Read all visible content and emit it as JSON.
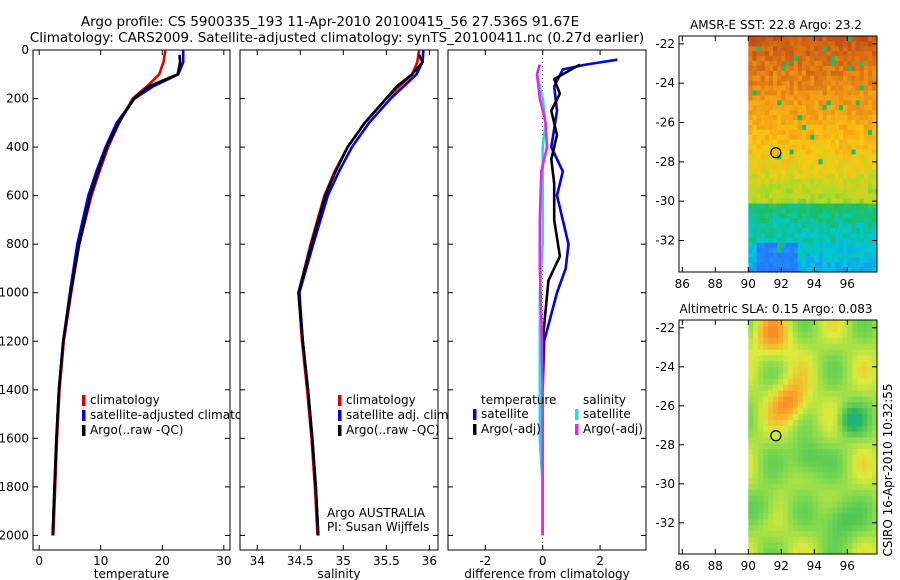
{
  "figure": {
    "title_line1": "Argo profile: CS 5900335_193 11-Apr-2010 20100415_56 27.536S 91.67E",
    "title_line2": "Climatology: CARS2009. Satellite-adjusted climatology: synTS_20100411.nc (0.27d earlier)",
    "side_label": "CSIRO 16-Apr-2010 10:32:55",
    "colors": {
      "red": "#e00000",
      "blue": "#0000ee",
      "black": "#000000",
      "cyan": "#22dddd",
      "magenta": "#ee22ee"
    }
  },
  "chart_data": [
    {
      "id": "temperature",
      "type": "line",
      "xlabel": "temperature",
      "xlim": [
        -1,
        31
      ],
      "ylim": [
        2060,
        0
      ],
      "xticks": [
        0,
        10,
        20,
        30
      ],
      "yticks": [
        0,
        200,
        400,
        600,
        800,
        1000,
        1200,
        1400,
        1600,
        1800,
        2000
      ],
      "legend": [
        "climatology",
        "satellite-adjusted climatology",
        "Argo(..raw -QC)"
      ],
      "legend_display": [
        "climatology",
        "satellite-adjusted climatolo",
        "Argo(..raw -QC)"
      ],
      "series": [
        {
          "name": "climatology",
          "color": "red",
          "x": [
            20.5,
            20.2,
            19.5,
            17.5,
            15.2,
            13.0,
            11.2,
            9.8,
            8.5,
            6.5,
            5.2,
            4.0,
            3.3,
            2.9,
            2.6,
            2.3
          ],
          "y": [
            0,
            50,
            100,
            150,
            200,
            300,
            400,
            500,
            600,
            800,
            1000,
            1200,
            1400,
            1600,
            1800,
            2000
          ]
        },
        {
          "name": "satellite-adjusted climatology",
          "color": "blue",
          "x": [
            23.4,
            23.4,
            22.6,
            18.5,
            15.5,
            12.6,
            10.8,
            9.3,
            8.0,
            6.2,
            5.0,
            3.9,
            3.2,
            2.8,
            2.5,
            2.2
          ],
          "y": [
            0,
            50,
            100,
            150,
            200,
            300,
            400,
            500,
            600,
            800,
            1000,
            1200,
            1400,
            1600,
            1800,
            2000
          ]
        },
        {
          "name": "Argo(..raw -QC)",
          "color": "black",
          "x": [
            22.8,
            22.9,
            22.5,
            17.8,
            15.4,
            12.9,
            11.0,
            9.6,
            8.3,
            6.5,
            5.1,
            3.9,
            3.2,
            2.8,
            2.5,
            2.2
          ],
          "y": [
            20,
            50,
            100,
            150,
            200,
            300,
            400,
            500,
            600,
            800,
            1000,
            1200,
            1400,
            1600,
            1800,
            2000
          ]
        }
      ]
    },
    {
      "id": "salinity",
      "type": "line",
      "xlabel": "salinity",
      "xlim": [
        33.8,
        36.1
      ],
      "ylim": [
        2060,
        0
      ],
      "xticks": [
        34,
        34.5,
        35,
        35.5,
        36
      ],
      "legend": [
        "climatology",
        "satellite adj. clim.",
        "Argo(..raw -QC)"
      ],
      "annotation_line1": "Argo AUSTRALIA",
      "annotation_line2": "PI: Susan Wijffels",
      "series": [
        {
          "name": "climatology",
          "color": "red",
          "x": [
            35.88,
            35.86,
            35.8,
            35.65,
            35.5,
            35.25,
            35.05,
            34.9,
            34.78,
            34.62,
            34.48,
            34.52,
            34.58,
            34.63,
            34.67,
            34.7
          ],
          "y": [
            0,
            50,
            100,
            150,
            200,
            300,
            400,
            500,
            600,
            800,
            1000,
            1200,
            1400,
            1600,
            1800,
            2000
          ]
        },
        {
          "name": "satellite adj. clim.",
          "color": "blue",
          "x": [
            35.93,
            35.92,
            35.85,
            35.7,
            35.55,
            35.3,
            35.1,
            34.95,
            34.82,
            34.65,
            34.49,
            34.53,
            34.59,
            34.64,
            34.68,
            34.71
          ],
          "y": [
            0,
            50,
            100,
            150,
            200,
            300,
            400,
            500,
            600,
            800,
            1000,
            1200,
            1400,
            1600,
            1800,
            2000
          ]
        },
        {
          "name": "Argo(..raw -QC)",
          "color": "black",
          "x": [
            35.88,
            35.92,
            35.8,
            35.62,
            35.5,
            35.25,
            35.05,
            34.91,
            34.79,
            34.63,
            34.48,
            34.53,
            34.59,
            34.64,
            34.68,
            34.71
          ],
          "y": [
            20,
            50,
            100,
            150,
            200,
            300,
            400,
            500,
            600,
            800,
            1000,
            1200,
            1400,
            1600,
            1800,
            2000
          ]
        }
      ]
    },
    {
      "id": "difference",
      "type": "line",
      "xlabel": "difference from climatology",
      "xlim": [
        -3.3,
        3.6
      ],
      "ylim": [
        2060,
        0
      ],
      "xticks": [
        -2,
        0,
        2
      ],
      "legend_group1_title": "temperature",
      "legend_group2_title": "salinity",
      "legend": [
        "satellite",
        "Argo(-adj)",
        "satellite",
        "Argo(-adj)"
      ],
      "series": [
        {
          "name": "temperature satellite",
          "color": "blue",
          "x": [
            2.6,
            1.5,
            0.7,
            0.4,
            0.5,
            0.3,
            0.7,
            0.5,
            0.9,
            0.8,
            0.5,
            0.05,
            0.0,
            0.0,
            0.0,
            0.0
          ],
          "y": [
            40,
            60,
            80,
            150,
            250,
            400,
            500,
            600,
            800,
            900,
            1000,
            1200,
            1400,
            1600,
            1800,
            2000
          ]
        },
        {
          "name": "temperature Argo(-adj)",
          "color": "black",
          "x": [
            1.3,
            1.0,
            0.4,
            0.6,
            0.3,
            0.5,
            0.3,
            0.4,
            0.4,
            0.6,
            0.2,
            0.0,
            0.0,
            0.0,
            0.0,
            0.0
          ],
          "y": [
            60,
            80,
            120,
            180,
            250,
            350,
            450,
            550,
            700,
            850,
            950,
            1200,
            1400,
            1600,
            1800,
            2000
          ]
        },
        {
          "name": "salinity satellite",
          "color": "cyan",
          "x": [
            -0.1,
            -0.2,
            0.0,
            0.1,
            0.0,
            0.0,
            0.0,
            -0.1,
            -0.1,
            -0.1,
            -0.1,
            0.0,
            0.0
          ],
          "y": [
            60,
            100,
            200,
            300,
            400,
            600,
            800,
            1000,
            1200,
            1400,
            1600,
            1800,
            2000
          ]
        },
        {
          "name": "salinity Argo(-adj)",
          "color": "magenta",
          "x": [
            -0.1,
            -0.2,
            -0.1,
            0.1,
            0.15,
            -0.05,
            -0.1,
            -0.1,
            -0.05,
            0.0,
            0.0,
            0.0
          ],
          "y": [
            60,
            100,
            200,
            300,
            400,
            500,
            700,
            900,
            1100,
            1400,
            1700,
            2000
          ]
        }
      ]
    },
    {
      "id": "sst_map",
      "type": "heatmap",
      "title": "AMSR-E SST: 22.8 Argo: 23.2",
      "xlim": [
        85.8,
        97.8
      ],
      "ylim": [
        -33.6,
        -21.6
      ],
      "xticks": [
        86,
        88,
        90,
        92,
        94,
        96
      ],
      "yticks": [
        -22,
        -24,
        -26,
        -28,
        -30,
        -32
      ],
      "data_lon_min": 90,
      "argo_marker": {
        "lon": 91.67,
        "lat": -27.536
      }
    },
    {
      "id": "sla_map",
      "type": "heatmap",
      "title": "Altimetric SLA: 0.15 Argo: 0.083",
      "xlim": [
        85.8,
        97.8
      ],
      "ylim": [
        -33.6,
        -21.6
      ],
      "xticks": [
        86,
        88,
        90,
        92,
        94,
        96
      ],
      "yticks": [
        -22,
        -24,
        -26,
        -28,
        -30,
        -32
      ],
      "data_lon_min": 90,
      "argo_marker": {
        "lon": 91.67,
        "lat": -27.536
      }
    }
  ]
}
